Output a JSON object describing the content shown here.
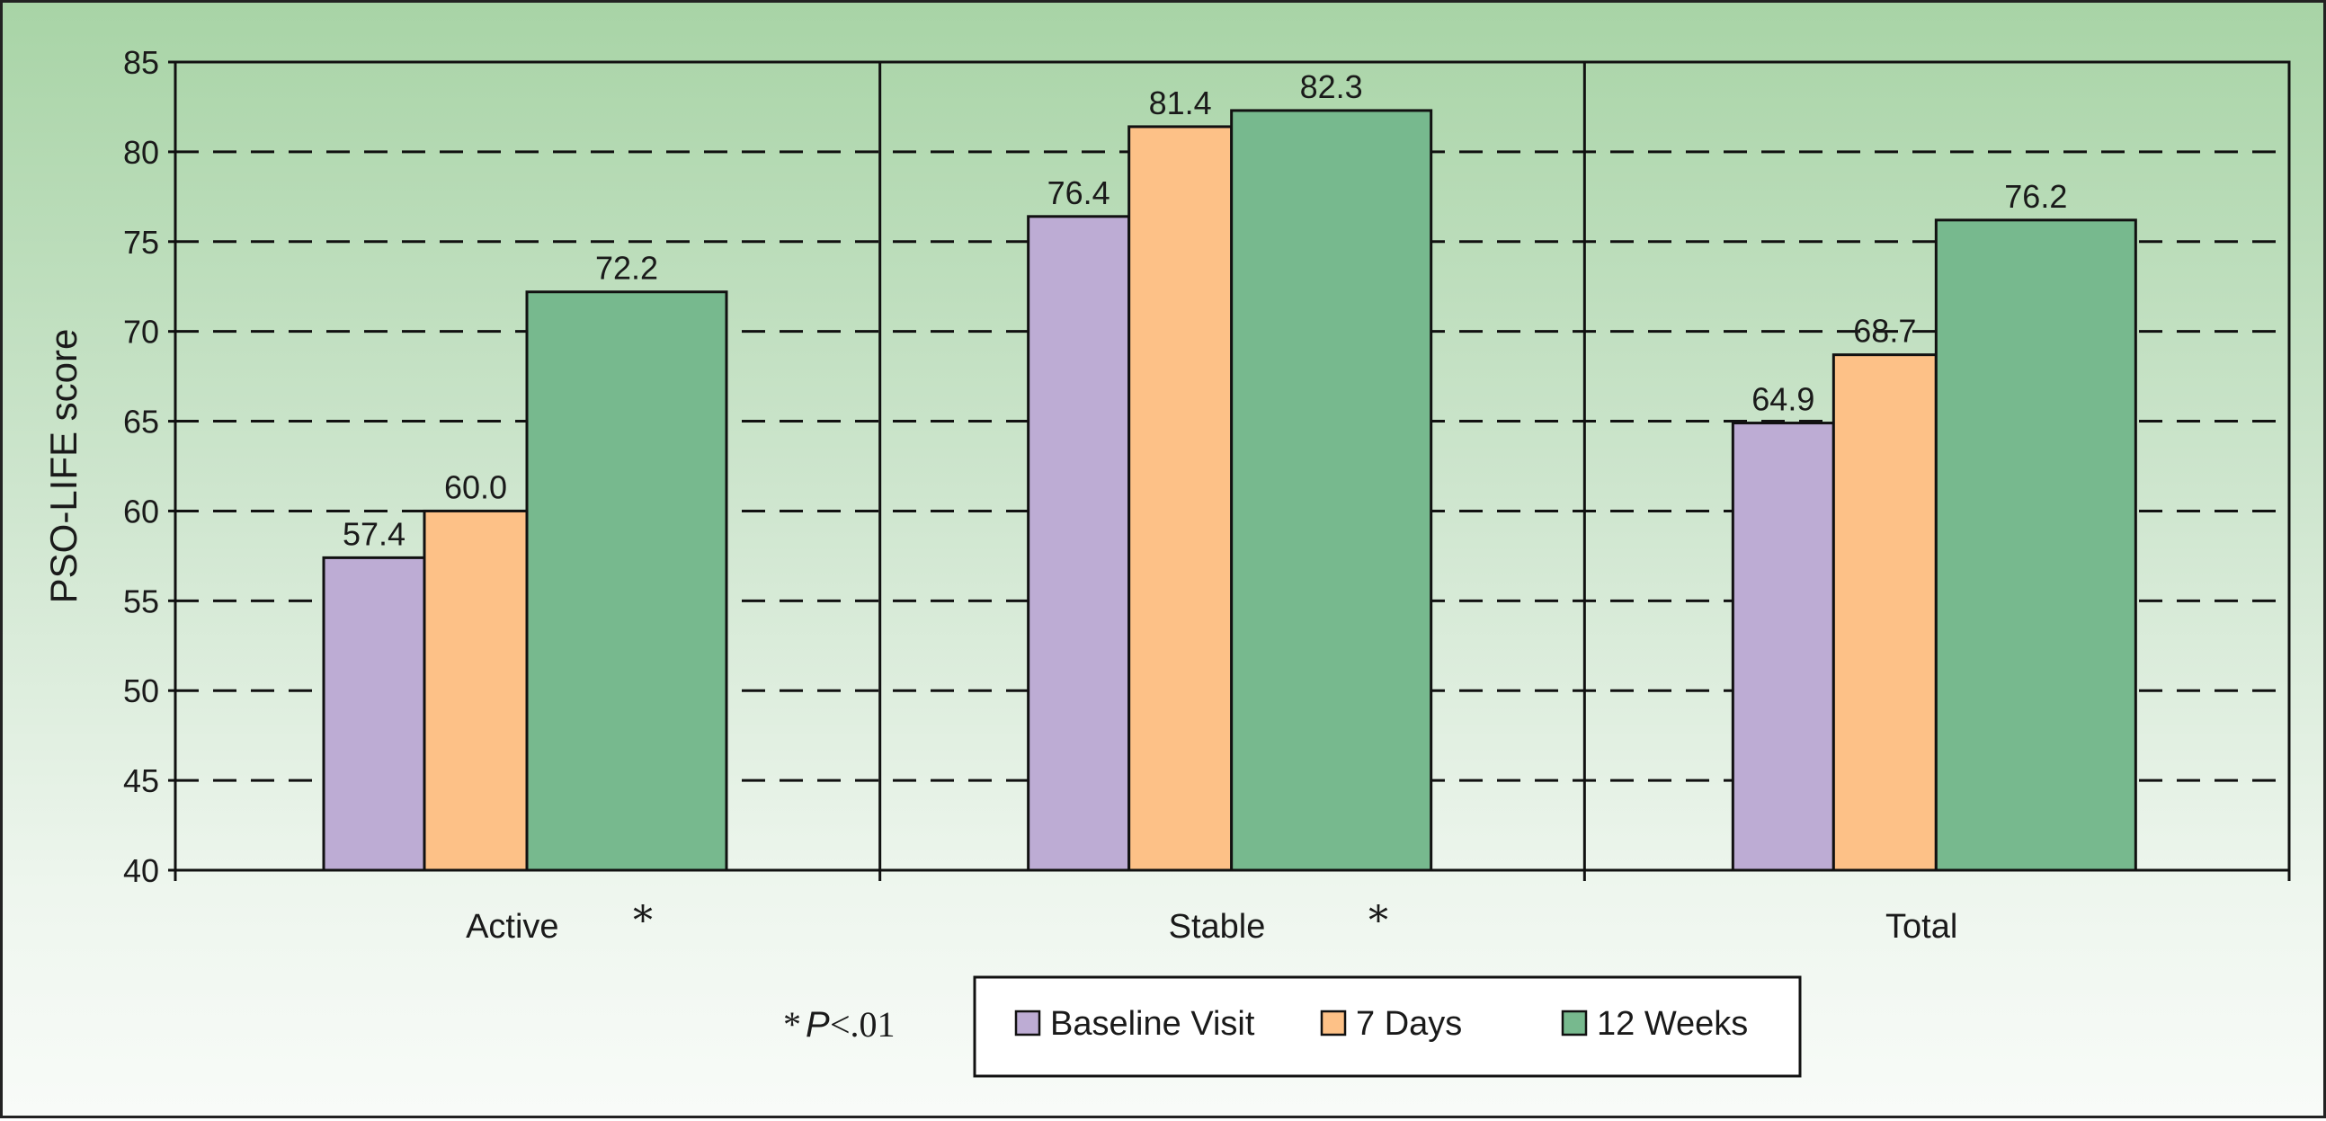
{
  "chart_data": {
    "type": "bar",
    "categories": [
      "Active",
      "Stable",
      "Total"
    ],
    "category_markers": [
      "*",
      "*",
      ""
    ],
    "series": [
      {
        "name": "Baseline Visit",
        "color": "#bdacd4",
        "values": [
          57.4,
          76.4,
          64.9
        ],
        "labels": [
          "57.4",
          "76.4",
          "64.9"
        ]
      },
      {
        "name": "7 Days",
        "color": "#fdc187",
        "values": [
          60.0,
          81.4,
          68.7
        ],
        "labels": [
          "60.0",
          "81.4",
          "68.7"
        ]
      },
      {
        "name": "12 Weeks",
        "color": "#77b98e",
        "values": [
          72.2,
          82.3,
          76.2
        ],
        "labels": [
          "72.2",
          "82.3",
          "76.2"
        ]
      }
    ],
    "ylabel": "PSO-LIFE score",
    "xlabel": "",
    "title": "",
    "ylim": [
      40,
      85
    ],
    "yticks": [
      40,
      45,
      50,
      55,
      60,
      65,
      70,
      75,
      80,
      85
    ],
    "grid": "dashed horizontal",
    "legend_position": "bottom",
    "footnote": {
      "symbol": "*",
      "p": "P",
      "rest": "<.01"
    }
  }
}
